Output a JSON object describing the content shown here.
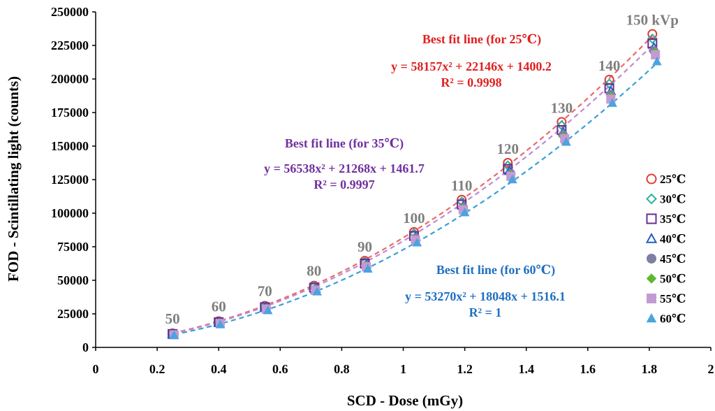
{
  "chart_data": {
    "type": "scatter",
    "xlabel": "SCD - Dose (mGy)",
    "ylabel": "FOD - Scintillating light (counts)",
    "xlim": [
      0,
      2
    ],
    "ylim": [
      0,
      250000
    ],
    "xticks": [
      0,
      0.2,
      0.4,
      0.6,
      0.8,
      1,
      1.2,
      1.4,
      1.6,
      1.8,
      2
    ],
    "xtick_labels": [
      "0",
      "0.2",
      "0.4",
      "0.6",
      "0.8",
      "1",
      "1.2",
      "1.4",
      "1.6",
      "1.8",
      "2"
    ],
    "yticks": [
      0,
      25000,
      50000,
      75000,
      100000,
      125000,
      150000,
      175000,
      200000,
      225000,
      250000
    ],
    "ytick_labels": [
      "0",
      "25000",
      "50000",
      "75000",
      "100000",
      "125000",
      "150000",
      "175000",
      "200000",
      "225000",
      "250000"
    ],
    "grid": false,
    "legend_position": "right",
    "kvp_labels": [
      {
        "text": "50",
        "x": 0.25,
        "y": 10000
      },
      {
        "text": "60",
        "x": 0.4,
        "y": 19000
      },
      {
        "text": "70",
        "x": 0.55,
        "y": 30500
      },
      {
        "text": "80",
        "x": 0.71,
        "y": 45500
      },
      {
        "text": "90",
        "x": 0.875,
        "y": 63500
      },
      {
        "text": "100",
        "x": 1.035,
        "y": 85000
      },
      {
        "text": "110",
        "x": 1.19,
        "y": 109000
      },
      {
        "text": "120",
        "x": 1.34,
        "y": 136500
      },
      {
        "text": "130",
        "x": 1.515,
        "y": 167000
      },
      {
        "text": "140",
        "x": 1.67,
        "y": 198500
      },
      {
        "text": "150 kVp",
        "x": 1.81,
        "y": 232500
      }
    ],
    "series": [
      {
        "name": "25℃",
        "marker": "circle-open",
        "color": "#e03c31",
        "x": [
          0.25,
          0.4,
          0.55,
          0.71,
          0.875,
          1.035,
          1.19,
          1.34,
          1.515,
          1.67,
          1.81
        ],
        "y": [
          10500,
          19500,
          31000,
          46000,
          64500,
          86000,
          110000,
          137500,
          168000,
          199500,
          233500
        ]
      },
      {
        "name": "30℃",
        "marker": "diamond-open",
        "color": "#2ab3a0",
        "x": [
          0.25,
          0.4,
          0.55,
          0.71,
          0.875,
          1.035,
          1.19,
          1.34,
          1.515,
          1.67,
          1.81
        ],
        "y": [
          10300,
          19200,
          30600,
          45500,
          63800,
          85000,
          108500,
          135500,
          165500,
          196500,
          230000
        ]
      },
      {
        "name": "35℃",
        "marker": "square-open",
        "color": "#6a2c91",
        "x": [
          0.25,
          0.4,
          0.55,
          0.71,
          0.875,
          1.035,
          1.19,
          1.34,
          1.515,
          1.67,
          1.81
        ],
        "y": [
          10000,
          18800,
          30000,
          44500,
          62500,
          83000,
          106500,
          133000,
          162000,
          193000,
          226500
        ]
      },
      {
        "name": "40℃",
        "marker": "triangle-open",
        "color": "#1f5fbf",
        "x": [
          0.25,
          0.4,
          0.55,
          0.715,
          0.88,
          1.04,
          1.195,
          1.345,
          1.52,
          1.675,
          1.815
        ],
        "y": [
          9800,
          18500,
          29500,
          44000,
          62000,
          82500,
          105500,
          131500,
          160500,
          191000,
          223500
        ]
      },
      {
        "name": "45℃",
        "marker": "circle-filled",
        "color": "#7f7fa3",
        "x": [
          0.255,
          0.405,
          0.555,
          0.715,
          0.88,
          1.04,
          1.195,
          1.35,
          1.52,
          1.675,
          1.815
        ],
        "y": [
          9600,
          18200,
          29000,
          43500,
          61000,
          81500,
          104500,
          129500,
          158500,
          188500,
          221000
        ]
      },
      {
        "name": "50℃",
        "marker": "diamond-filled",
        "color": "#5cb82e",
        "x": [
          0.255,
          0.405,
          0.555,
          0.715,
          0.88,
          1.04,
          1.195,
          1.35,
          1.52,
          1.675,
          1.82
        ],
        "y": [
          9500,
          18000,
          28700,
          43000,
          60500,
          80500,
          103500,
          128500,
          157000,
          187000,
          220000
        ]
      },
      {
        "name": "55℃",
        "marker": "square-filled",
        "color": "#c39bd3",
        "x": [
          0.255,
          0.405,
          0.555,
          0.715,
          0.88,
          1.04,
          1.195,
          1.35,
          1.525,
          1.675,
          1.82
        ],
        "y": [
          9400,
          17800,
          28500,
          42500,
          60000,
          80000,
          102500,
          127500,
          155500,
          185000,
          218000
        ]
      },
      {
        "name": "60℃",
        "marker": "triangle-filled",
        "color": "#4ba3e0",
        "x": [
          0.255,
          0.405,
          0.56,
          0.72,
          0.885,
          1.045,
          1.2,
          1.355,
          1.53,
          1.68,
          1.825
        ],
        "y": [
          9000,
          17000,
          27500,
          41500,
          58500,
          78000,
          100500,
          125000,
          153000,
          182000,
          213000
        ]
      }
    ],
    "fit_curves": [
      {
        "label": "25℃",
        "a": 58157,
        "b": 22146,
        "c": 1400.2,
        "color": "#e86a6a",
        "x_range": [
          0.25,
          1.81
        ]
      },
      {
        "label": "35℃",
        "a": 56538,
        "b": 21268,
        "c": 1461.7,
        "color": "#c08ad4",
        "x_range": [
          0.25,
          1.81
        ]
      },
      {
        "label": "60℃",
        "a": 53270,
        "b": 18048,
        "c": 1516.1,
        "color": "#3a9fd8",
        "x_range": [
          0.255,
          1.825
        ]
      }
    ],
    "annotations": [
      {
        "lines": [
          "Best fit line (for 25℃)"
        ],
        "color": "#e02020"
      },
      {
        "lines": [
          "y = 58157x² + 22146x + 1400.2",
          "R² = 0.9998"
        ],
        "color": "#e02020"
      },
      {
        "lines": [
          "Best fit line (for 35℃)"
        ],
        "color": "#7030a0"
      },
      {
        "lines": [
          "y = 56538x² + 21268x + 1461.7",
          "R² = 0.9997"
        ],
        "color": "#7030a0"
      },
      {
        "lines": [
          "Best fit line (for 60℃)"
        ],
        "color": "#1f6fc0"
      },
      {
        "lines": [
          "y = 53270x² + 18048x + 1516.1",
          "R² = 1"
        ],
        "color": "#1f6fc0"
      }
    ]
  }
}
